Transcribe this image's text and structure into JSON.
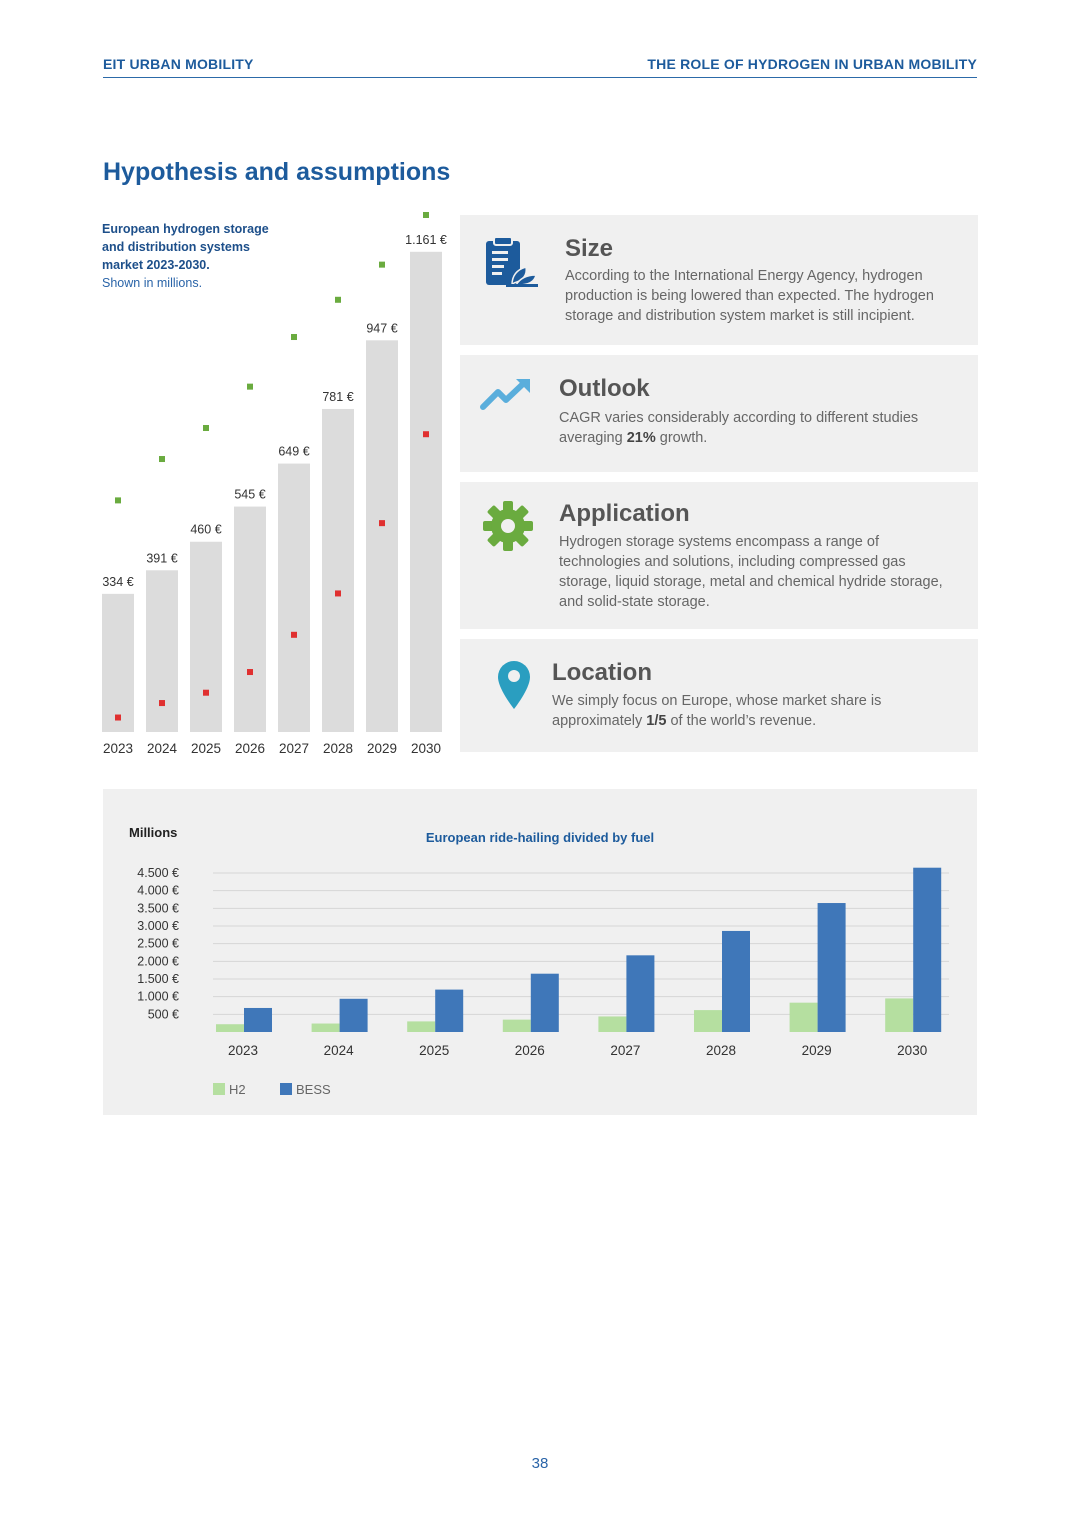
{
  "header": {
    "left": "EIT URBAN MOBILITY",
    "right": "THE ROLE OF HYDROGEN IN URBAN MOBILITY"
  },
  "page_title": "Hypothesis and assumptions",
  "chart1_caption": {
    "line1": "European hydrogen storage",
    "line2": "and distribution systems",
    "line3": "market 2023-2030.",
    "line4": "Shown in millions."
  },
  "cards": [
    {
      "title": "Size",
      "icon": "document-plant-icon",
      "text": "According to the International Energy Agency, hydrogen production is being lowered than expected. The hydrogen storage and distribution system market is still incipient."
    },
    {
      "title": "Outlook",
      "icon": "trend-up-arrow-icon",
      "text_before": "CAGR varies considerably according to different studies averaging ",
      "text_bold": "21%",
      "text_after": " growth."
    },
    {
      "title": "Application",
      "icon": "gear-icon",
      "text": "Hydrogen storage systems encompass a range of technologies and solutions, including compressed gas storage, liquid storage, metal and chemical hydride storage, and solid-state storage."
    },
    {
      "title": "Location",
      "icon": "location-pin-icon",
      "text_before": "We simply focus on Europe, whose market share is approximately ",
      "text_bold": "1/5",
      "text_after": " of the world’s revenue."
    }
  ],
  "colors": {
    "brand_blue": "#1d5b9c",
    "bar_gray": "#dcdcdc",
    "range_green": "#6aab3f",
    "range_red": "#e03030",
    "h2_green": "#b5dfa0",
    "bess_blue": "#3f77b9",
    "card_bg": "#f0f0f0"
  },
  "chart_data": [
    {
      "type": "bar",
      "categories": [
        "2023",
        "2024",
        "2025",
        "2026",
        "2027",
        "2028",
        "2029",
        "2030"
      ],
      "values": [
        334,
        391,
        460,
        545,
        649,
        781,
        947,
        1161
      ],
      "value_labels": [
        "334 €",
        "391 €",
        "460 €",
        "545 €",
        "649 €",
        "781 €",
        "947 €",
        "1.161 €"
      ],
      "range_high": [
        560,
        660,
        735,
        835,
        955,
        1045,
        1130,
        1250
      ],
      "range_low": [
        35,
        70,
        95,
        145,
        235,
        335,
        505,
        720
      ],
      "ylim": [
        0,
        1250
      ],
      "grid": false,
      "legend": "none"
    },
    {
      "type": "bar",
      "title": "European ride-hailing divided by fuel",
      "ylabel": "Millions",
      "categories": [
        "2023",
        "2024",
        "2025",
        "2026",
        "2027",
        "2028",
        "2029",
        "2030"
      ],
      "yticks": [
        "500 €",
        "1.000 €",
        "1.500 €",
        "2.000 €",
        "2.500 €",
        "3.000 €",
        "3.500 €",
        "4.000 €",
        "4.500 €"
      ],
      "ylim": [
        0,
        4500
      ],
      "grid": true,
      "legend": "bottom-left",
      "series": [
        {
          "name": "H2",
          "values": [
            220,
            240,
            300,
            350,
            440,
            620,
            830,
            950
          ]
        },
        {
          "name": "BESS",
          "values": [
            680,
            940,
            1200,
            1650,
            2170,
            2860,
            3650,
            4650
          ]
        }
      ]
    }
  ],
  "page_number": "38"
}
